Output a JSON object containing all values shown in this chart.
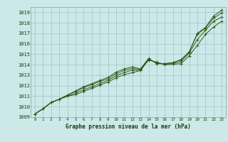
{
  "xlabel": "Graphe pression niveau de la mer (hPa)",
  "xlim": [
    -0.5,
    23.5
  ],
  "ylim": [
    1009,
    1019.5
  ],
  "yticks": [
    1009,
    1010,
    1011,
    1012,
    1013,
    1014,
    1015,
    1016,
    1017,
    1018,
    1019
  ],
  "xticks": [
    0,
    1,
    2,
    3,
    4,
    5,
    6,
    7,
    8,
    9,
    10,
    11,
    12,
    13,
    14,
    15,
    16,
    17,
    18,
    19,
    20,
    21,
    22,
    23
  ],
  "bg_color": "#cce8e8",
  "line_color": "#2d5a1b",
  "grid_color": "#aacece",
  "series": [
    [
      1009.3,
      1009.8,
      1010.4,
      1010.7,
      1011.0,
      1011.15,
      1011.45,
      1011.75,
      1012.05,
      1012.35,
      1012.75,
      1013.05,
      1013.25,
      1013.45,
      1014.45,
      1014.25,
      1014.0,
      1014.05,
      1014.1,
      1014.85,
      1015.85,
      1016.9,
      1017.6,
      1018.15
    ],
    [
      1009.3,
      1009.8,
      1010.4,
      1010.7,
      1011.0,
      1011.3,
      1011.6,
      1011.9,
      1012.2,
      1012.5,
      1012.95,
      1013.25,
      1013.5,
      1013.45,
      1014.5,
      1014.2,
      1014.05,
      1014.1,
      1014.3,
      1015.1,
      1016.4,
      1017.3,
      1018.15,
      1018.55
    ],
    [
      1009.3,
      1009.8,
      1010.4,
      1010.7,
      1011.1,
      1011.45,
      1011.8,
      1012.1,
      1012.4,
      1012.65,
      1013.15,
      1013.45,
      1013.65,
      1013.55,
      1014.55,
      1014.15,
      1014.1,
      1014.2,
      1014.45,
      1015.25,
      1016.9,
      1017.5,
      1018.45,
      1018.95
    ],
    [
      1009.3,
      1009.8,
      1010.4,
      1010.7,
      1011.1,
      1011.5,
      1011.9,
      1012.2,
      1012.5,
      1012.8,
      1013.3,
      1013.6,
      1013.8,
      1013.6,
      1014.6,
      1014.1,
      1014.1,
      1014.2,
      1014.5,
      1015.2,
      1017.0,
      1017.55,
      1018.65,
      1019.2
    ]
  ]
}
